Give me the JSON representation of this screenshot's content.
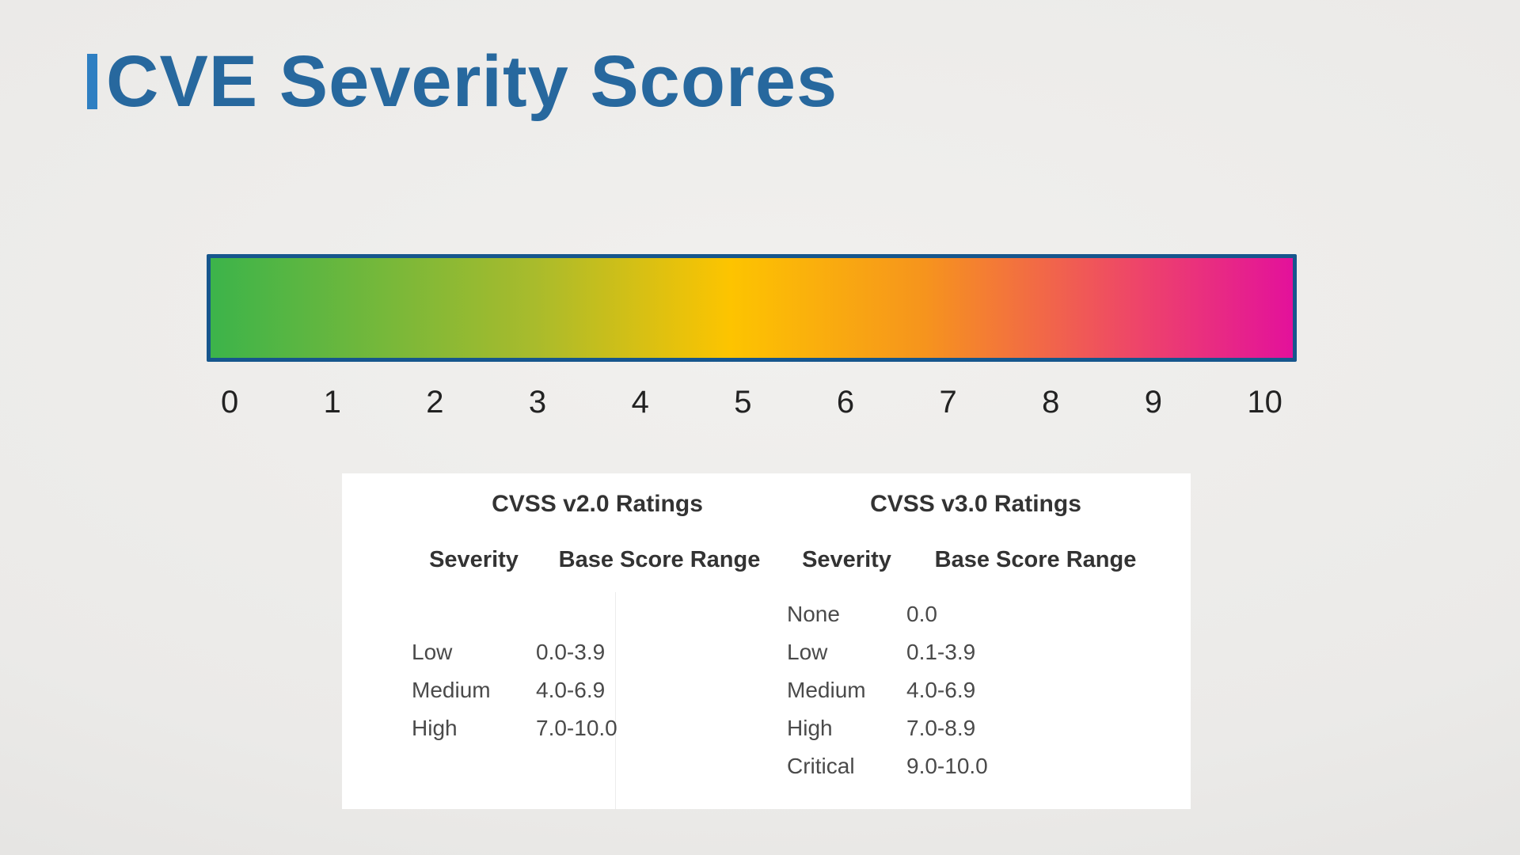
{
  "page": {
    "background_color": "#ebeae8"
  },
  "title": {
    "text": "CVE Severity Scores",
    "text_color": "#27689e",
    "accent_color": "#2e7fc2"
  },
  "scale": {
    "border_color": "#16568d",
    "gradient_stops": [
      {
        "pos": 0,
        "color": "#3cb44a"
      },
      {
        "pos": 30,
        "color": "#a9bb2c"
      },
      {
        "pos": 48,
        "color": "#fdc400"
      },
      {
        "pos": 66,
        "color": "#f6941d"
      },
      {
        "pos": 85,
        "color": "#ee4767"
      },
      {
        "pos": 100,
        "color": "#e3119b"
      }
    ],
    "ticks": [
      "0",
      "1",
      "2",
      "3",
      "4",
      "5",
      "6",
      "7",
      "8",
      "9",
      "10"
    ]
  },
  "ratings_panel": {
    "tables": [
      {
        "title": "CVSS v2.0 Ratings",
        "columns": [
          "Severity",
          "Base Score Range"
        ],
        "rows": [
          {
            "severity": "Low",
            "range": "0.0-3.9"
          },
          {
            "severity": "Medium",
            "range": "4.0-6.9"
          },
          {
            "severity": "High",
            "range": "7.0-10.0"
          }
        ]
      },
      {
        "title": "CVSS v3.0 Ratings",
        "columns": [
          "Severity",
          "Base Score Range"
        ],
        "rows": [
          {
            "severity": "None",
            "range": "0.0"
          },
          {
            "severity": "Low",
            "range": "0.1-3.9"
          },
          {
            "severity": "Medium",
            "range": "4.0-6.9"
          },
          {
            "severity": "High",
            "range": "7.0-8.9"
          },
          {
            "severity": "Critical",
            "range": "9.0-10.0"
          }
        ]
      }
    ]
  }
}
